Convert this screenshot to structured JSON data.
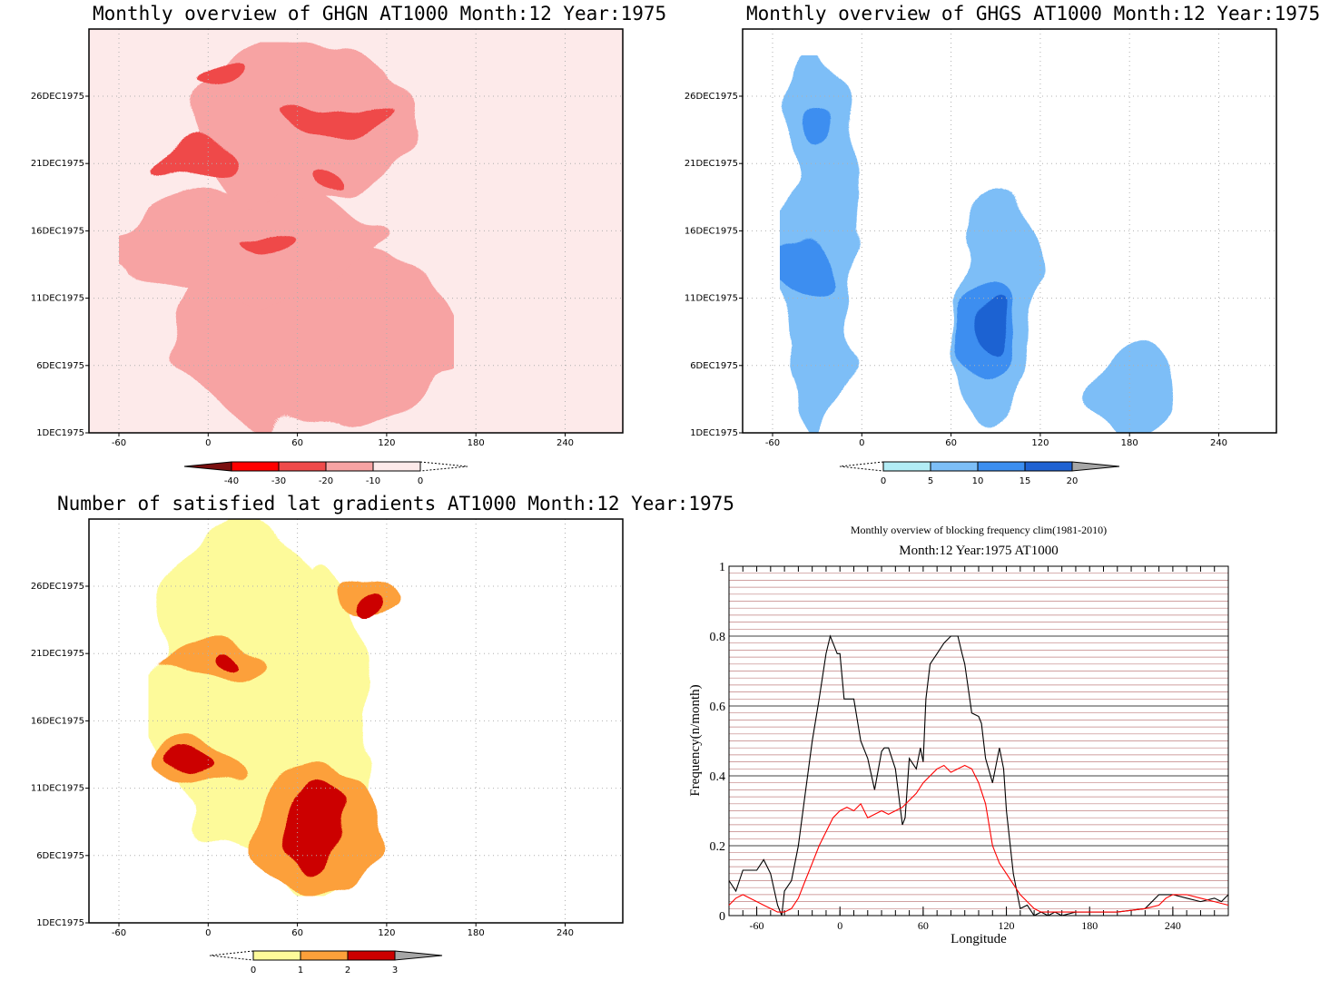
{
  "panels": {
    "ghgn": {
      "title": "Monthly overview of GHGN AT1000 Month:12 Year:1975",
      "colorbar": {
        "labels": [
          "-40",
          "-30",
          "-20",
          "-10",
          "0"
        ],
        "colors": [
          "#7a0f0f",
          "#ff0000",
          "#ef4a4a",
          "#f7a3a3",
          "#fdeaea"
        ]
      }
    },
    "ghgs": {
      "title": "Monthly overview of GHGS AT1000 Month:12 Year:1975",
      "colorbar": {
        "labels": [
          "0",
          "5",
          "10",
          "15",
          "20"
        ],
        "colors": [
          "#b2ecf5",
          "#7dbef7",
          "#3c8ef0",
          "#1f62d2",
          "#a6a6a6"
        ]
      }
    },
    "gradients": {
      "title": "Number of satisfied lat gradients AT1000 Month:12 Year:1975",
      "colorbar": {
        "labels": [
          "0",
          "1",
          "2",
          "3"
        ],
        "colors": [
          "#fdfa9a",
          "#fca03a",
          "#cc0000",
          "#a6a6a6"
        ]
      }
    },
    "frequency": {
      "title": "Monthly overview of blocking frequency clim(1981-2010)",
      "subtitle": "Month:12 Year:1975  AT1000",
      "xlabel": "Longitude",
      "ylabel": "Frequency(n/month)"
    }
  },
  "map_axes": {
    "x_ticks": [
      "-60",
      "0",
      "60",
      "120",
      "180",
      "240"
    ],
    "y_ticks": [
      "1DEC1975",
      "6DEC1975",
      "11DEC1975",
      "16DEC1975",
      "21DEC1975",
      "26DEC1975"
    ]
  },
  "chart_data": [
    {
      "type": "heatmap",
      "title": "Monthly overview of GHGN AT1000 Month:12 Year:1975",
      "x_ticks": [
        -60,
        0,
        60,
        120,
        180,
        240
      ],
      "y_ticks": [
        "1DEC1975",
        "6DEC1975",
        "11DEC1975",
        "16DEC1975",
        "21DEC1975",
        "26DEC1975"
      ],
      "levels": [
        -40,
        -30,
        -20,
        -10,
        0
      ],
      "blobs": [
        {
          "lon": 70,
          "day": 8,
          "level": -10,
          "rx": 95,
          "ry": 7
        },
        {
          "lon": 30,
          "day": 15,
          "level": -10,
          "rx": 90,
          "ry": 4
        },
        {
          "lon": 60,
          "day": 24,
          "level": -10,
          "rx": 75,
          "ry": 6
        },
        {
          "lon": -5,
          "day": 21,
          "level": -20,
          "rx": 28,
          "ry": 1.2
        },
        {
          "lon": 90,
          "day": 25,
          "level": -20,
          "rx": 35,
          "ry": 1.1
        },
        {
          "lon": 10,
          "day": 27.5,
          "level": -20,
          "rx": 20,
          "ry": 1
        },
        {
          "lon": 40,
          "day": 15.5,
          "level": -20,
          "rx": 22,
          "ry": 0.7
        },
        {
          "lon": 80,
          "day": 19.5,
          "level": -20,
          "rx": 15,
          "ry": 0.6
        }
      ]
    },
    {
      "type": "heatmap",
      "title": "Monthly overview of GHGS AT1000 Month:12 Year:1975",
      "x_ticks": [
        -60,
        0,
        60,
        120,
        180,
        240
      ],
      "y_ticks": [
        "1DEC1975",
        "6DEC1975",
        "11DEC1975",
        "16DEC1975",
        "21DEC1975",
        "26DEC1975"
      ],
      "levels": [
        0,
        5,
        10,
        15,
        20
      ],
      "blobs": [
        {
          "lon": -30,
          "day": 15,
          "level": 5,
          "rx": 25,
          "ry": 14
        },
        {
          "lon": 90,
          "day": 10,
          "level": 5,
          "rx": 30,
          "ry": 9
        },
        {
          "lon": 180,
          "day": 4,
          "level": 5,
          "rx": 30,
          "ry": 3
        },
        {
          "lon": -35,
          "day": 13,
          "level": 10,
          "rx": 20,
          "ry": 2
        },
        {
          "lon": 85,
          "day": 8.5,
          "level": 10,
          "rx": 22,
          "ry": 3.5
        },
        {
          "lon": -30,
          "day": 24,
          "level": 10,
          "rx": 10,
          "ry": 1.5
        },
        {
          "lon": 90,
          "day": 9,
          "level": 15,
          "rx": 12,
          "ry": 2
        }
      ]
    },
    {
      "type": "heatmap",
      "title": "Number of satisfied lat gradients AT1000 Month:12 Year:1975",
      "x_ticks": [
        -60,
        0,
        60,
        120,
        180,
        240
      ],
      "y_ticks": [
        "1DEC1975",
        "6DEC1975",
        "11DEC1975",
        "16DEC1975",
        "21DEC1975",
        "26DEC1975"
      ],
      "levels": [
        0,
        1,
        2,
        3
      ],
      "blobs": [
        {
          "lon": 20,
          "day": 19,
          "level": 0,
          "rx": 60,
          "ry": 12
        },
        {
          "lon": 70,
          "day": 15,
          "level": 0,
          "rx": 40,
          "ry": 12
        },
        {
          "lon": 0,
          "day": 20.5,
          "level": 1,
          "rx": 40,
          "ry": 1.5
        },
        {
          "lon": -10,
          "day": 12.5,
          "level": 1,
          "rx": 30,
          "ry": 1.5
        },
        {
          "lon": 70,
          "day": 8,
          "level": 1,
          "rx": 45,
          "ry": 4.5
        },
        {
          "lon": 110,
          "day": 25,
          "level": 1,
          "rx": 25,
          "ry": 1.5
        },
        {
          "lon": 75,
          "day": 8,
          "level": 2,
          "rx": 25,
          "ry": 3
        },
        {
          "lon": -15,
          "day": 12.5,
          "level": 2,
          "rx": 15,
          "ry": 0.8
        },
        {
          "lon": 10,
          "day": 20.5,
          "level": 2,
          "rx": 10,
          "ry": 0.6
        },
        {
          "lon": 110,
          "day": 24.5,
          "level": 2,
          "rx": 8,
          "ry": 1.2
        }
      ]
    },
    {
      "type": "line",
      "title": "Monthly overview of blocking frequency clim(1981-2010)",
      "subtitle": "Month:12 Year:1975  AT1000",
      "xlabel": "Longitude",
      "ylabel": "Frequency(n/month)",
      "xlim": [
        -80,
        280
      ],
      "ylim": [
        0,
        1
      ],
      "x_ticks": [
        -60,
        0,
        60,
        120,
        180,
        240
      ],
      "y_ticks": [
        0,
        0.2,
        0.4,
        0.6,
        0.8,
        1
      ],
      "grid": true,
      "series": [
        {
          "color": "#000000",
          "x": [
            -80,
            -75,
            -70,
            -60,
            -55,
            -50,
            -45,
            -42,
            -40,
            -35,
            -30,
            -25,
            -20,
            -15,
            -10,
            -7,
            -5,
            -2,
            0,
            3,
            5,
            10,
            15,
            20,
            25,
            30,
            32,
            35,
            40,
            45,
            47,
            50,
            55,
            58,
            60,
            62,
            65,
            70,
            75,
            80,
            85,
            88,
            90,
            95,
            100,
            102,
            105,
            110,
            115,
            118,
            120,
            125,
            130,
            135,
            140,
            145,
            150,
            155,
            160,
            170,
            180,
            200,
            220,
            230,
            240,
            250,
            260,
            270,
            275,
            280
          ],
          "y": [
            0.1,
            0.07,
            0.13,
            0.13,
            0.16,
            0.12,
            0.03,
            0.0,
            0.07,
            0.1,
            0.2,
            0.35,
            0.5,
            0.62,
            0.75,
            0.8,
            0.78,
            0.75,
            0.75,
            0.62,
            0.62,
            0.62,
            0.5,
            0.45,
            0.36,
            0.47,
            0.48,
            0.48,
            0.42,
            0.26,
            0.28,
            0.45,
            0.42,
            0.48,
            0.44,
            0.62,
            0.72,
            0.75,
            0.78,
            0.8,
            0.8,
            0.75,
            0.72,
            0.58,
            0.57,
            0.55,
            0.45,
            0.38,
            0.48,
            0.42,
            0.3,
            0.12,
            0.02,
            0.03,
            0.0,
            0.01,
            0.0,
            0.01,
            0.0,
            0.01,
            0.01,
            0.01,
            0.02,
            0.06,
            0.06,
            0.05,
            0.04,
            0.05,
            0.04,
            0.06
          ]
        },
        {
          "color": "#ff0000",
          "x": [
            -80,
            -75,
            -70,
            -65,
            -60,
            -55,
            -50,
            -45,
            -40,
            -35,
            -30,
            -25,
            -20,
            -15,
            -10,
            -5,
            0,
            5,
            10,
            15,
            20,
            25,
            30,
            35,
            40,
            45,
            50,
            55,
            60,
            65,
            70,
            75,
            80,
            85,
            90,
            95,
            100,
            105,
            110,
            115,
            120,
            125,
            130,
            135,
            140,
            145,
            150,
            160,
            180,
            200,
            220,
            230,
            235,
            240,
            250,
            260,
            270,
            280
          ],
          "y": [
            0.03,
            0.05,
            0.06,
            0.05,
            0.04,
            0.03,
            0.02,
            0.01,
            0.01,
            0.02,
            0.05,
            0.1,
            0.15,
            0.2,
            0.24,
            0.28,
            0.3,
            0.31,
            0.3,
            0.32,
            0.28,
            0.29,
            0.3,
            0.29,
            0.3,
            0.31,
            0.33,
            0.35,
            0.38,
            0.4,
            0.42,
            0.43,
            0.41,
            0.42,
            0.43,
            0.42,
            0.38,
            0.32,
            0.2,
            0.15,
            0.12,
            0.09,
            0.06,
            0.04,
            0.02,
            0.01,
            0.01,
            0.01,
            0.01,
            0.01,
            0.02,
            0.03,
            0.05,
            0.06,
            0.06,
            0.05,
            0.04,
            0.03
          ]
        }
      ]
    }
  ]
}
